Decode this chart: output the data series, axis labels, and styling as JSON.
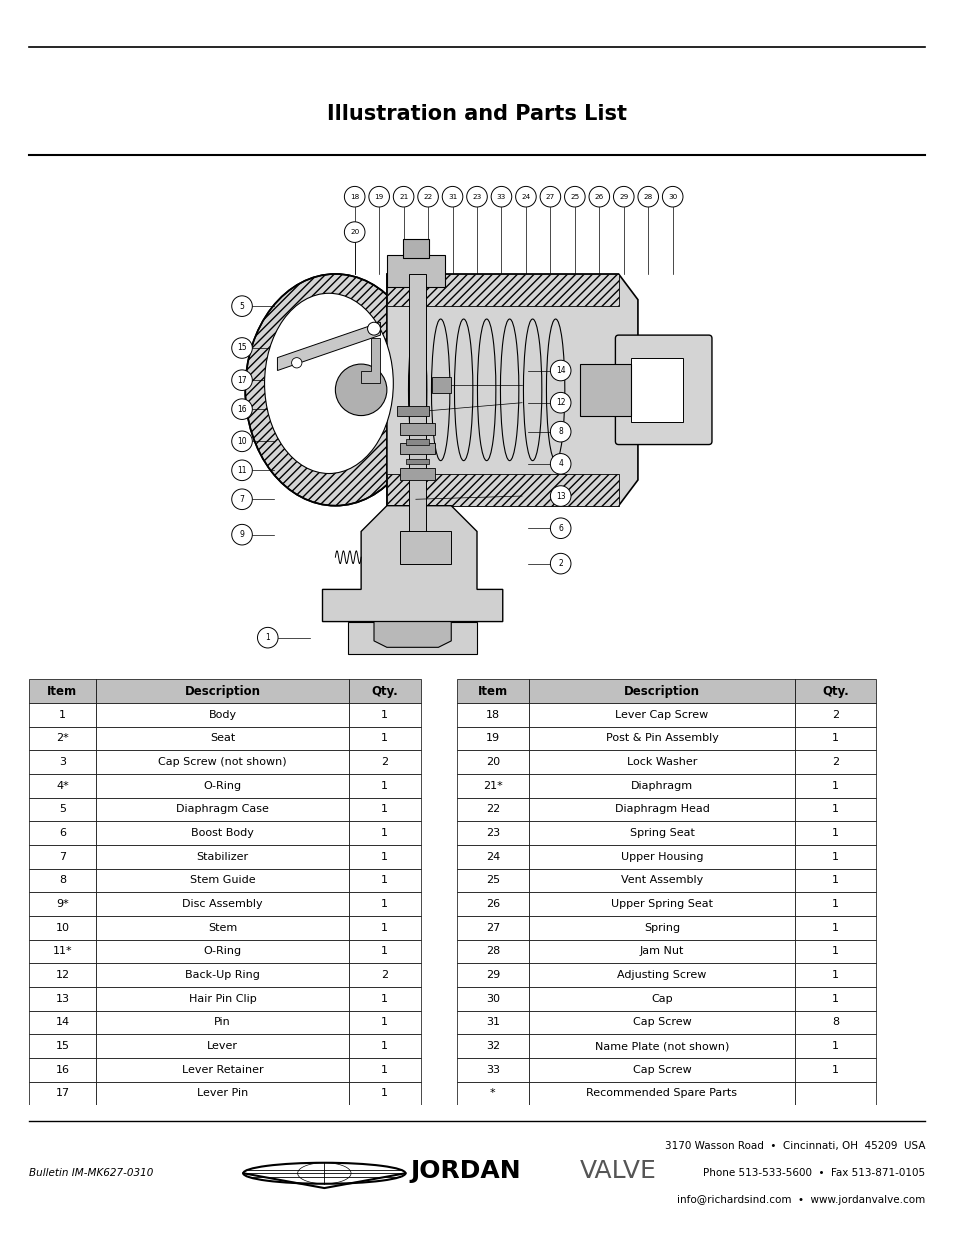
{
  "title": "Illustration and Parts List",
  "table_data_left": [
    [
      "1",
      "Body",
      "1"
    ],
    [
      "2*",
      "Seat",
      "1"
    ],
    [
      "3",
      "Cap Screw (not shown)",
      "2"
    ],
    [
      "4*",
      "O-Ring",
      "1"
    ],
    [
      "5",
      "Diaphragm Case",
      "1"
    ],
    [
      "6",
      "Boost Body",
      "1"
    ],
    [
      "7",
      "Stabilizer",
      "1"
    ],
    [
      "8",
      "Stem Guide",
      "1"
    ],
    [
      "9*",
      "Disc Assembly",
      "1"
    ],
    [
      "10",
      "Stem",
      "1"
    ],
    [
      "11*",
      "O-Ring",
      "1"
    ],
    [
      "12",
      "Back-Up Ring",
      "2"
    ],
    [
      "13",
      "Hair Pin Clip",
      "1"
    ],
    [
      "14",
      "Pin",
      "1"
    ],
    [
      "15",
      "Lever",
      "1"
    ],
    [
      "16",
      "Lever Retainer",
      "1"
    ],
    [
      "17",
      "Lever Pin",
      "1"
    ]
  ],
  "table_data_right": [
    [
      "18",
      "Lever Cap Screw",
      "2"
    ],
    [
      "19",
      "Post & Pin Assembly",
      "1"
    ],
    [
      "20",
      "Lock Washer",
      "2"
    ],
    [
      "21*",
      "Diaphragm",
      "1"
    ],
    [
      "22",
      "Diaphragm Head",
      "1"
    ],
    [
      "23",
      "Spring Seat",
      "1"
    ],
    [
      "24",
      "Upper Housing",
      "1"
    ],
    [
      "25",
      "Vent Assembly",
      "1"
    ],
    [
      "26",
      "Upper Spring Seat",
      "1"
    ],
    [
      "27",
      "Spring",
      "1"
    ],
    [
      "28",
      "Jam Nut",
      "1"
    ],
    [
      "29",
      "Adjusting Screw",
      "1"
    ],
    [
      "30",
      "Cap",
      "1"
    ],
    [
      "31",
      "Cap Screw",
      "8"
    ],
    [
      "32",
      "Name Plate (not shown)",
      "1"
    ],
    [
      "33",
      "Cap Screw",
      "1"
    ],
    [
      "*",
      "Recommended Spare Parts",
      ""
    ]
  ],
  "header_bg": "#c0c0c0",
  "footer_bulletin": "Bulletin IM-MK627-0310",
  "footer_line1": "3170 Wasson Road  •  Cincinnati, OH  45209  USA",
  "footer_line2": "Phone 513-533-5600  •  Fax 513-871-0105",
  "footer_line3": "info@richardsind.com  •  www.jordanvalve.com"
}
